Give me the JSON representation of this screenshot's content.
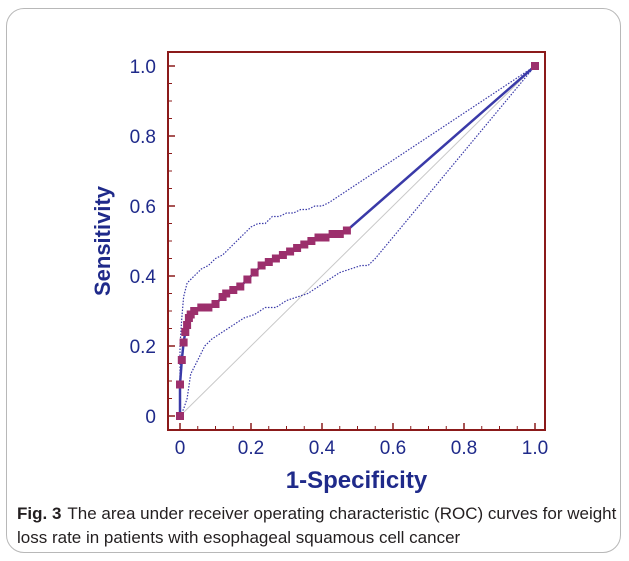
{
  "caption": {
    "label": "Fig. 3",
    "text": "The area under receiver operating characteristic (ROC) curves for weight loss rate in patients with esophageal squamous cell cancer"
  },
  "colors": {
    "frame": "#8b1a1a",
    "roc_marker": "#9c2f6c",
    "ci_line": "#3a3aa8",
    "reference_line": "#c8c8c8",
    "axis_text": "#1f2a8a"
  },
  "chart_data": {
    "type": "line",
    "xlabel": "1-Specificity",
    "ylabel": "Sensitivity",
    "xlim": [
      0,
      1
    ],
    "ylim": [
      0,
      1
    ],
    "xticks": [
      "0",
      "0.2",
      "0.4",
      "0.6",
      "0.8",
      "1.0"
    ],
    "yticks": [
      "0",
      "0.2",
      "0.4",
      "0.6",
      "0.8",
      "1.0"
    ],
    "grid": false,
    "series": [
      {
        "role": "roc",
        "x": [
          0,
          0,
          0.005,
          0.01,
          0.015,
          0.02,
          0.025,
          0.03,
          0.04,
          0.06,
          0.08,
          0.1,
          0.12,
          0.13,
          0.15,
          0.17,
          0.19,
          0.21,
          0.23,
          0.25,
          0.27,
          0.29,
          0.31,
          0.33,
          0.35,
          0.37,
          0.39,
          0.41,
          0.43,
          0.45,
          0.47,
          1.0
        ],
        "y": [
          0,
          0.09,
          0.16,
          0.21,
          0.24,
          0.26,
          0.28,
          0.29,
          0.3,
          0.31,
          0.31,
          0.32,
          0.34,
          0.35,
          0.36,
          0.37,
          0.39,
          0.41,
          0.43,
          0.44,
          0.45,
          0.46,
          0.47,
          0.48,
          0.49,
          0.5,
          0.51,
          0.51,
          0.52,
          0.52,
          0.53,
          1.0
        ]
      },
      {
        "role": "ci-upper",
        "x": [
          0,
          0,
          0.005,
          0.01,
          0.02,
          0.04,
          0.06,
          0.08,
          0.1,
          0.12,
          0.14,
          0.16,
          0.18,
          0.2,
          0.22,
          0.24,
          0.26,
          0.28,
          0.3,
          0.32,
          0.34,
          0.36,
          0.38,
          0.4,
          0.42,
          1.0
        ],
        "y": [
          0,
          0.2,
          0.28,
          0.34,
          0.38,
          0.4,
          0.42,
          0.43,
          0.45,
          0.46,
          0.48,
          0.5,
          0.52,
          0.54,
          0.55,
          0.55,
          0.57,
          0.57,
          0.58,
          0.58,
          0.59,
          0.59,
          0.6,
          0.6,
          0.61,
          1.0
        ]
      },
      {
        "role": "ci-lower",
        "x": [
          0,
          0.01,
          0.02,
          0.03,
          0.05,
          0.07,
          0.09,
          0.12,
          0.15,
          0.18,
          0.21,
          0.24,
          0.27,
          0.3,
          0.33,
          0.36,
          0.39,
          0.42,
          0.45,
          0.48,
          0.51,
          0.53,
          0.55,
          1.0
        ],
        "y": [
          0,
          0.02,
          0.05,
          0.12,
          0.16,
          0.2,
          0.22,
          0.24,
          0.26,
          0.28,
          0.29,
          0.31,
          0.31,
          0.33,
          0.34,
          0.35,
          0.37,
          0.39,
          0.41,
          0.42,
          0.43,
          0.43,
          0.45,
          1.0
        ]
      },
      {
        "role": "reference",
        "x": [
          0,
          1
        ],
        "y": [
          0,
          1
        ]
      }
    ]
  }
}
